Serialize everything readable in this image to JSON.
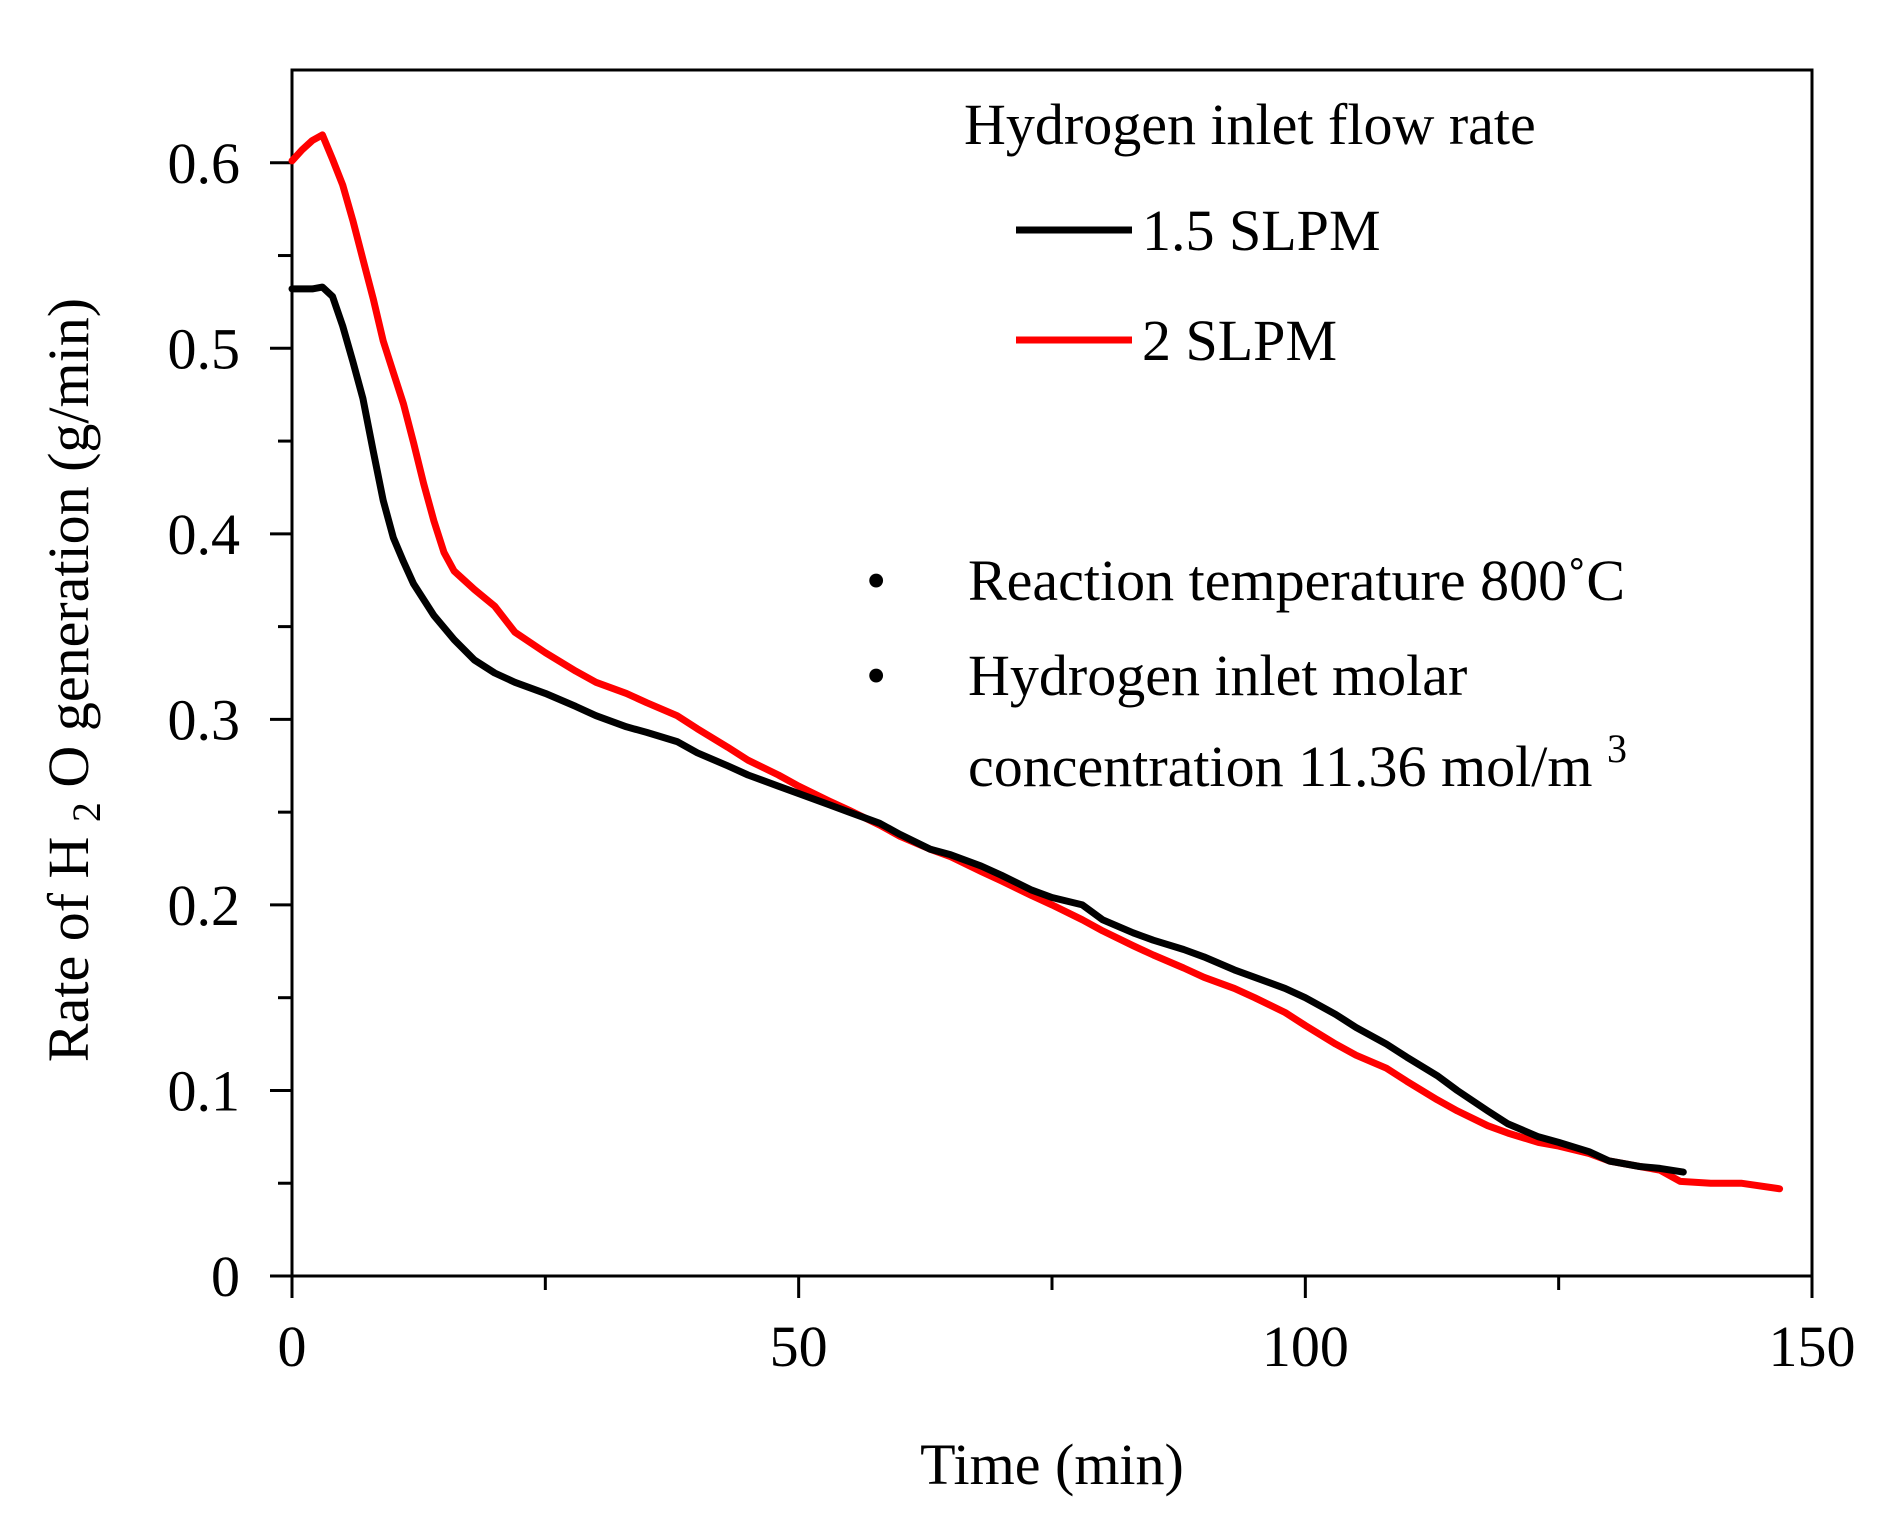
{
  "chart_data": {
    "type": "line",
    "title": "",
    "xlabel": "Time (min)",
    "ylabel": {
      "prefix": "Rate of ",
      "species_main": "H",
      "species_sub": "2",
      "species_rest": "O",
      "suffix": " generation (g/min)"
    },
    "xlim": [
      0,
      150
    ],
    "ylim": [
      0,
      0.65
    ],
    "x_ticks": [
      0,
      50,
      100,
      150
    ],
    "x_tick_labels": [
      "0",
      "50",
      "100",
      "150"
    ],
    "x_minor_ticks": [
      25,
      75,
      125
    ],
    "y_ticks": [
      0,
      0.1,
      0.2,
      0.3,
      0.4,
      0.5,
      0.6
    ],
    "y_tick_labels": [
      "0",
      "0.1",
      "0.2",
      "0.3",
      "0.4",
      "0.5",
      "0.6"
    ],
    "y_minor_ticks": [
      0.05,
      0.15,
      0.25,
      0.35,
      0.45,
      0.55
    ],
    "grid": false,
    "legend": {
      "title": "Hydrogen inlet flow rate",
      "position": "top-right"
    },
    "series": [
      {
        "name": "1.5 SLPM",
        "color": "#000000",
        "x": [
          0,
          1,
          2,
          3,
          4,
          5,
          6,
          7,
          8,
          9,
          10,
          11,
          12,
          14,
          16,
          18,
          20,
          22,
          25,
          28,
          30,
          33,
          35,
          38,
          40,
          43,
          45,
          48,
          50,
          53,
          55,
          58,
          60,
          63,
          65,
          68,
          70,
          73,
          75,
          78,
          80,
          83,
          85,
          88,
          90,
          93,
          95,
          98,
          100,
          103,
          105,
          108,
          110,
          113,
          115,
          118,
          120,
          123,
          125,
          128,
          130,
          133,
          135,
          137.3
        ],
        "y": [
          0.532,
          0.532,
          0.532,
          0.533,
          0.528,
          0.512,
          0.493,
          0.473,
          0.445,
          0.418,
          0.398,
          0.385,
          0.373,
          0.356,
          0.343,
          0.332,
          0.325,
          0.32,
          0.314,
          0.307,
          0.302,
          0.296,
          0.293,
          0.288,
          0.282,
          0.275,
          0.27,
          0.264,
          0.26,
          0.254,
          0.25,
          0.244,
          0.238,
          0.23,
          0.227,
          0.221,
          0.216,
          0.208,
          0.204,
          0.2,
          0.192,
          0.185,
          0.181,
          0.176,
          0.172,
          0.165,
          0.161,
          0.155,
          0.15,
          0.141,
          0.134,
          0.125,
          0.118,
          0.108,
          0.1,
          0.089,
          0.082,
          0.075,
          0.072,
          0.067,
          0.062,
          0.059,
          0.058,
          0.056
        ]
      },
      {
        "name": "2 SLPM",
        "color": "#ff0000",
        "x": [
          0,
          1,
          2,
          3,
          4,
          5,
          6,
          7,
          8,
          9,
          10,
          11,
          12,
          13,
          14,
          15,
          16,
          18,
          20,
          22,
          25,
          28,
          30,
          33,
          35,
          38,
          40,
          43,
          45,
          48,
          50,
          53,
          55,
          58,
          60,
          63,
          65,
          68,
          70,
          73,
          75,
          78,
          80,
          83,
          85,
          88,
          90,
          93,
          95,
          98,
          100,
          103,
          105,
          108,
          110,
          113,
          115,
          118,
          120,
          123,
          125,
          128,
          130,
          133,
          135,
          137,
          140,
          143,
          146.8
        ],
        "y": [
          0.601,
          0.607,
          0.612,
          0.615,
          0.602,
          0.588,
          0.569,
          0.548,
          0.527,
          0.504,
          0.487,
          0.47,
          0.449,
          0.427,
          0.407,
          0.39,
          0.38,
          0.37,
          0.361,
          0.347,
          0.336,
          0.326,
          0.32,
          0.314,
          0.309,
          0.302,
          0.295,
          0.285,
          0.278,
          0.27,
          0.264,
          0.256,
          0.251,
          0.243,
          0.237,
          0.23,
          0.226,
          0.218,
          0.213,
          0.205,
          0.2,
          0.192,
          0.186,
          0.178,
          0.173,
          0.166,
          0.161,
          0.155,
          0.15,
          0.142,
          0.135,
          0.125,
          0.119,
          0.112,
          0.105,
          0.095,
          0.089,
          0.081,
          0.077,
          0.072,
          0.07,
          0.066,
          0.062,
          0.059,
          0.057,
          0.051,
          0.05,
          0.05,
          0.047
        ]
      }
    ],
    "annotations": [
      {
        "marker": "•",
        "lines": [
          "Reaction temperature 800˚C"
        ]
      },
      {
        "marker": "•",
        "lines": [
          "Hydrogen inlet molar",
          "concentration 11.36 mol/m"
        ],
        "superscript": "3"
      }
    ]
  }
}
